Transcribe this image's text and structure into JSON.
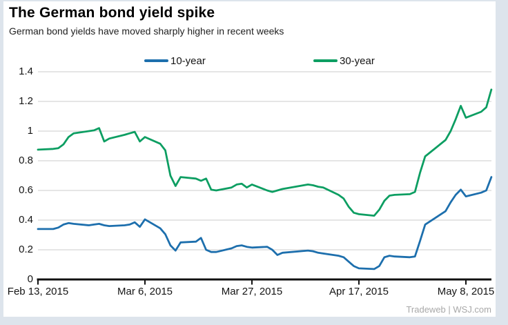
{
  "header": {
    "title": "The German bond yield spike",
    "subtitle": "German bond yields have moved sharply higher in recent weeks"
  },
  "source": "Tradeweb  |  WSJ.com",
  "chart_data": {
    "type": "line",
    "title": "The German bond yield spike",
    "xlabel": "",
    "ylabel": "",
    "ylim": [
      0,
      1.4
    ],
    "grid": "horizontal",
    "legend_position": "top",
    "y_ticks": [
      0,
      0.2,
      0.4,
      0.6,
      0.8,
      1,
      1.2,
      1.4
    ],
    "y_tick_labels": [
      "0",
      "0.2",
      "0.4",
      "0.6",
      "0.8",
      "1",
      "1.2",
      "1.4"
    ],
    "x_ticks": [
      {
        "label": "Feb 13, 2015",
        "day": 0
      },
      {
        "label": "Mar 6, 2015",
        "day": 21
      },
      {
        "label": "Mar 27, 2015",
        "day": 42
      },
      {
        "label": "Apr 17, 2015",
        "day": 63
      },
      {
        "label": "May 8, 2015",
        "day": 84
      }
    ],
    "dates": [
      "Feb 13",
      "Feb 16",
      "Feb 17",
      "Feb 18",
      "Feb 19",
      "Feb 20",
      "Feb 23",
      "Feb 24",
      "Feb 25",
      "Feb 26",
      "Feb 27",
      "Mar 2",
      "Mar 3",
      "Mar 4",
      "Mar 5",
      "Mar 6",
      "Mar 9",
      "Mar 10",
      "Mar 11",
      "Mar 12",
      "Mar 13",
      "Mar 16",
      "Mar 17",
      "Mar 18",
      "Mar 19",
      "Mar 20",
      "Mar 23",
      "Mar 24",
      "Mar 25",
      "Mar 26",
      "Mar 27",
      "Mar 30",
      "Mar 31",
      "Apr 1",
      "Apr 2",
      "Apr 7",
      "Apr 8",
      "Apr 9",
      "Apr 10",
      "Apr 13",
      "Apr 14",
      "Apr 15",
      "Apr 16",
      "Apr 17",
      "Apr 20",
      "Apr 21",
      "Apr 22",
      "Apr 23",
      "Apr 24",
      "Apr 27",
      "Apr 28",
      "Apr 29",
      "Apr 30",
      "May 4",
      "May 5",
      "May 6",
      "May 7",
      "May 8",
      "May 11",
      "May 12",
      "May 13"
    ],
    "day_offsets": [
      0,
      3,
      4,
      5,
      6,
      7,
      10,
      11,
      12,
      13,
      14,
      17,
      18,
      19,
      20,
      21,
      24,
      25,
      26,
      27,
      28,
      31,
      32,
      33,
      34,
      35,
      38,
      39,
      40,
      41,
      42,
      45,
      46,
      47,
      48,
      53,
      54,
      55,
      56,
      59,
      60,
      61,
      62,
      63,
      66,
      67,
      68,
      69,
      70,
      73,
      74,
      75,
      76,
      80,
      81,
      82,
      83,
      84,
      87,
      88,
      89
    ],
    "series": [
      {
        "name": "10-year",
        "color": "#1d6fad",
        "values": [
          0.34,
          0.34,
          0.35,
          0.37,
          0.38,
          0.375,
          0.365,
          0.37,
          0.375,
          0.365,
          0.36,
          0.365,
          0.37,
          0.385,
          0.355,
          0.405,
          0.345,
          0.305,
          0.23,
          0.195,
          0.25,
          0.255,
          0.28,
          0.2,
          0.185,
          0.185,
          0.21,
          0.225,
          0.23,
          0.22,
          0.215,
          0.22,
          0.2,
          0.165,
          0.18,
          0.195,
          0.19,
          0.18,
          0.175,
          0.16,
          0.15,
          0.12,
          0.09,
          0.075,
          0.07,
          0.09,
          0.15,
          0.16,
          0.155,
          0.15,
          0.155,
          0.26,
          0.37,
          0.46,
          0.52,
          0.57,
          0.605,
          0.56,
          0.585,
          0.6,
          0.69
        ]
      },
      {
        "name": "30-year",
        "color": "#0d9e62",
        "values": [
          0.875,
          0.88,
          0.885,
          0.91,
          0.96,
          0.985,
          1.0,
          1.005,
          1.02,
          0.93,
          0.95,
          0.975,
          0.985,
          0.995,
          0.93,
          0.96,
          0.915,
          0.87,
          0.7,
          0.63,
          0.69,
          0.68,
          0.665,
          0.68,
          0.605,
          0.6,
          0.62,
          0.64,
          0.645,
          0.62,
          0.64,
          0.6,
          0.59,
          0.6,
          0.61,
          0.64,
          0.635,
          0.625,
          0.62,
          0.57,
          0.545,
          0.49,
          0.45,
          0.44,
          0.43,
          0.47,
          0.53,
          0.565,
          0.57,
          0.575,
          0.59,
          0.72,
          0.83,
          0.94,
          1.0,
          1.08,
          1.17,
          1.09,
          1.13,
          1.16,
          1.28
        ]
      }
    ]
  },
  "colors": {
    "grid": "#cbcbcb",
    "axis": "#111111",
    "page_background": "#dde4ec",
    "card_background": "#ffffff"
  }
}
